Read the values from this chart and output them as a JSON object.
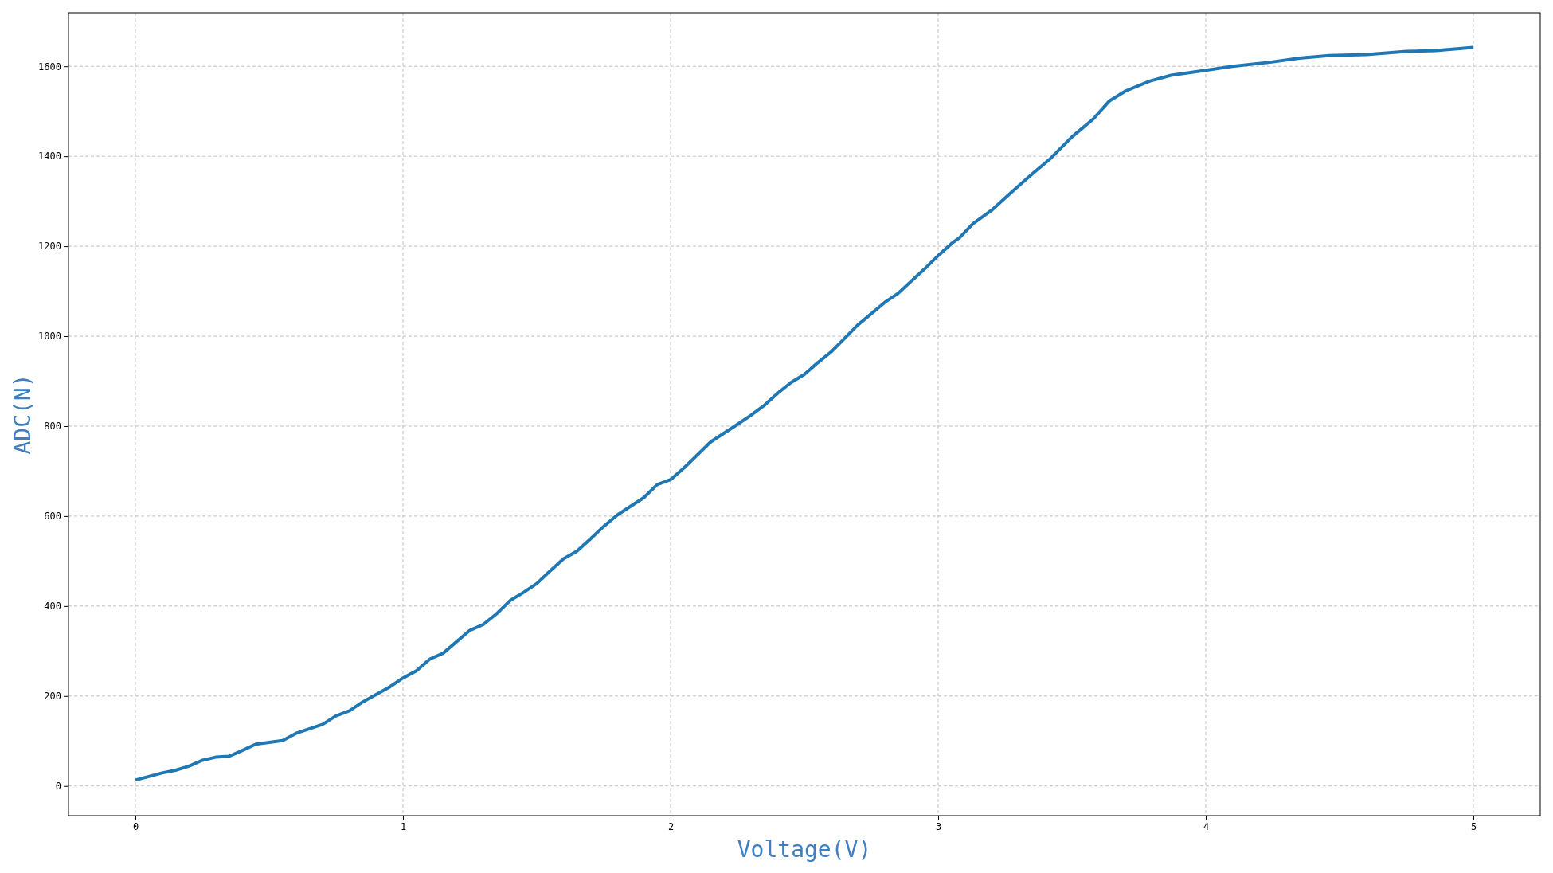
{
  "chart_data": {
    "type": "line",
    "xlabel": "Voltage(V)",
    "ylabel": "ADC(N)",
    "x": [
      0,
      0.1,
      0.15,
      0.2,
      0.25,
      0.3,
      0.35,
      0.4,
      0.45,
      0.55,
      0.6,
      0.7,
      0.75,
      0.8,
      0.85,
      0.95,
      1.0,
      1.05,
      1.1,
      1.15,
      1.25,
      1.3,
      1.35,
      1.4,
      1.45,
      1.5,
      1.55,
      1.6,
      1.65,
      1.7,
      1.75,
      1.8,
      1.9,
      1.95,
      2.0,
      2.05,
      2.1,
      2.15,
      2.25,
      2.3,
      2.35,
      2.4,
      2.45,
      2.5,
      2.55,
      2.6,
      2.7,
      2.8,
      2.85,
      2.95,
      3.0,
      3.05,
      3.08,
      3.13,
      3.2,
      3.27,
      3.35,
      3.42,
      3.5,
      3.58,
      3.64,
      3.7,
      3.79,
      3.87,
      4.0,
      4.1,
      4.24,
      4.35,
      4.46,
      4.6,
      4.75,
      4.86,
      5.0
    ],
    "series": [
      {
        "color": "#1f77b4",
        "values": [
          13,
          29,
          35,
          44,
          57,
          64,
          66,
          79,
          93,
          101,
          117,
          137,
          156,
          167,
          187,
          220,
          240,
          256,
          282,
          295,
          346,
          359,
          383,
          412,
          430,
          450,
          478,
          505,
          522,
          549,
          577,
          602,
          641,
          670,
          681,
          707,
          736,
          765,
          804,
          824,
          846,
          873,
          897,
          915,
          941,
          965,
          1025,
          1075,
          1095,
          1150,
          1179,
          1206,
          1219,
          1250,
          1280,
          1318,
          1360,
          1395,
          1443,
          1483,
          1523,
          1545,
          1567,
          1580,
          1591,
          1600,
          1609,
          1618,
          1624,
          1626,
          1633,
          1635,
          1642
        ]
      }
    ],
    "xlim": [
      -0.25,
      5.25
    ],
    "xticks": [
      0,
      1,
      2,
      3,
      4,
      5
    ],
    "ylim": [
      -66,
      1719
    ],
    "yticks": [
      0,
      200,
      400,
      600,
      800,
      1000,
      1200,
      1400,
      1600
    ],
    "grid": true,
    "line_style": "solid",
    "marker": "none"
  }
}
